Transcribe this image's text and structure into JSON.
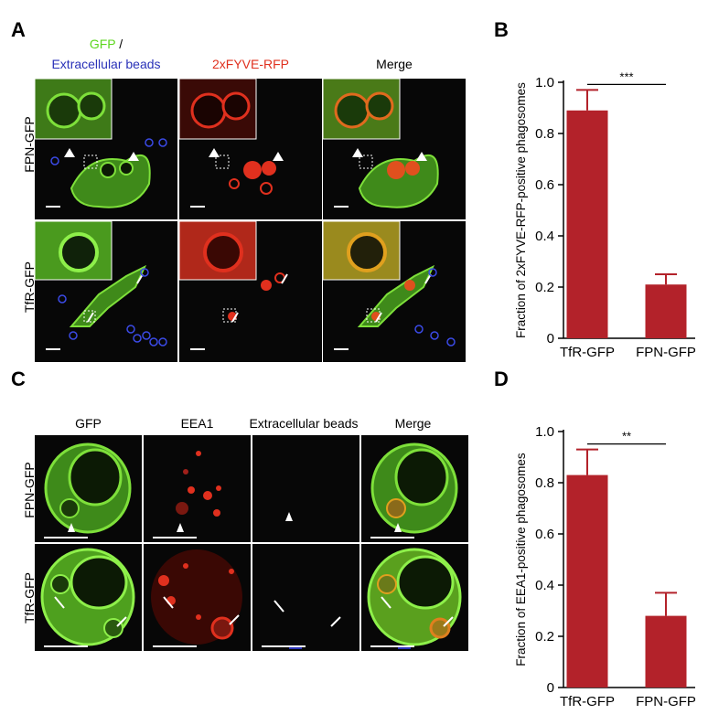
{
  "panel_letters": {
    "a": "A",
    "b": "B",
    "c": "C",
    "d": "D"
  },
  "panel_a": {
    "col_labels": {
      "gfp": "GFP",
      "slash": " /",
      "beads": "Extracellular beads",
      "rfp": "2xFYVE-RFP",
      "merge": "Merge"
    },
    "row_labels": {
      "fpn": "FPN-GFP",
      "tfr": "TfR-GFP"
    }
  },
  "panel_c": {
    "col_labels": {
      "gfp": "GFP",
      "eea1": "EEA1",
      "beads": "Extracellular beads",
      "merge": "Merge"
    },
    "row_labels": {
      "fpn": "FPN-GFP",
      "tfr": "TfR-GFP"
    }
  },
  "colors": {
    "bar": "#b3222a",
    "gfp": "#5cd61c",
    "rfp": "#e0301e",
    "bead": "#2a32b8",
    "background": "#070707"
  },
  "chart_data": [
    {
      "type": "bar",
      "panel": "B",
      "categories": [
        "TfR-GFP",
        "FPN-GFP"
      ],
      "values": [
        0.89,
        0.21
      ],
      "errors": [
        0.08,
        0.04
      ],
      "ylabel": "Fraction of 2xFYVE-RFP-positive phagosomes",
      "ylim": [
        0,
        1.0
      ],
      "yticks": [
        "0",
        "0.2",
        "0.4",
        "0.6",
        "0.8",
        "1.0"
      ],
      "significance": "***",
      "grid": false
    },
    {
      "type": "bar",
      "panel": "D",
      "categories": [
        "TfR-GFP",
        "FPN-GFP"
      ],
      "values": [
        0.83,
        0.28
      ],
      "errors": [
        0.1,
        0.09
      ],
      "ylabel": "Fraction of EEA1-positive phagosomes",
      "ylim": [
        0,
        1.0
      ],
      "yticks": [
        "0",
        "0.2",
        "0.4",
        "0.6",
        "0.8",
        "1.0"
      ],
      "significance": "**",
      "grid": false
    }
  ]
}
